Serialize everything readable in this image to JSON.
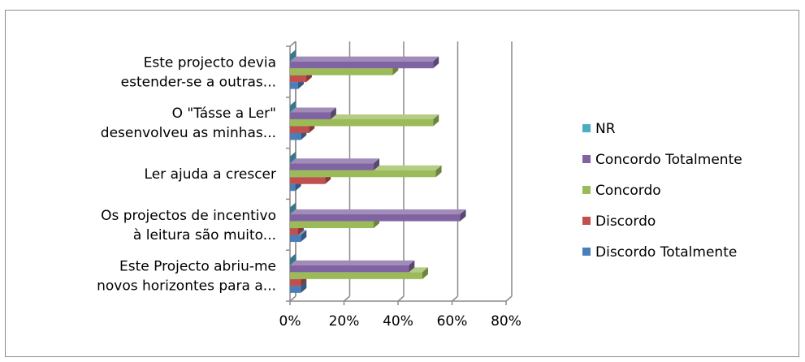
{
  "chart_data": {
    "type": "bar",
    "orientation": "horizontal",
    "style": "3d-clustered",
    "categories": [
      [
        "Este Projecto abriu-me",
        "novos horizontes para a..."
      ],
      [
        "Os projectos de incentivo",
        "à leitura são muito..."
      ],
      [
        "Ler ajuda a crescer"
      ],
      [
        "O \"Tásse a Ler\"",
        "desenvolveu as minhas..."
      ],
      [
        "Este projecto devia",
        "estender-se a outras..."
      ]
    ],
    "series": [
      {
        "name": "Discordo Totalmente",
        "color": "#4a7ebb",
        "values": [
          0.04,
          0.04,
          0.02,
          0.04,
          0.03
        ]
      },
      {
        "name": "Discordo",
        "color": "#c0504d",
        "values": [
          0.04,
          0.03,
          0.13,
          0.07,
          0.06
        ]
      },
      {
        "name": "Concordo",
        "color": "#9bbb59",
        "values": [
          0.49,
          0.31,
          0.54,
          0.53,
          0.38
        ]
      },
      {
        "name": "Concordo Totalmente",
        "color": "#8064a2",
        "values": [
          0.44,
          0.63,
          0.31,
          0.15,
          0.53
        ]
      },
      {
        "name": "NR",
        "color": "#4bacc6",
        "values": [
          0.0,
          0.0,
          0.0,
          0.0,
          0.0
        ]
      }
    ],
    "xlim": [
      0,
      0.8
    ],
    "xticks": [
      "0%",
      "20%",
      "40%",
      "60%",
      "80%"
    ],
    "grid": true,
    "legend": {
      "position": "right",
      "order": [
        "NR",
        "Concordo Totalmente",
        "Concordo",
        "Discordo",
        "Discordo Totalmente"
      ]
    },
    "title": "",
    "xlabel": "",
    "ylabel": ""
  }
}
